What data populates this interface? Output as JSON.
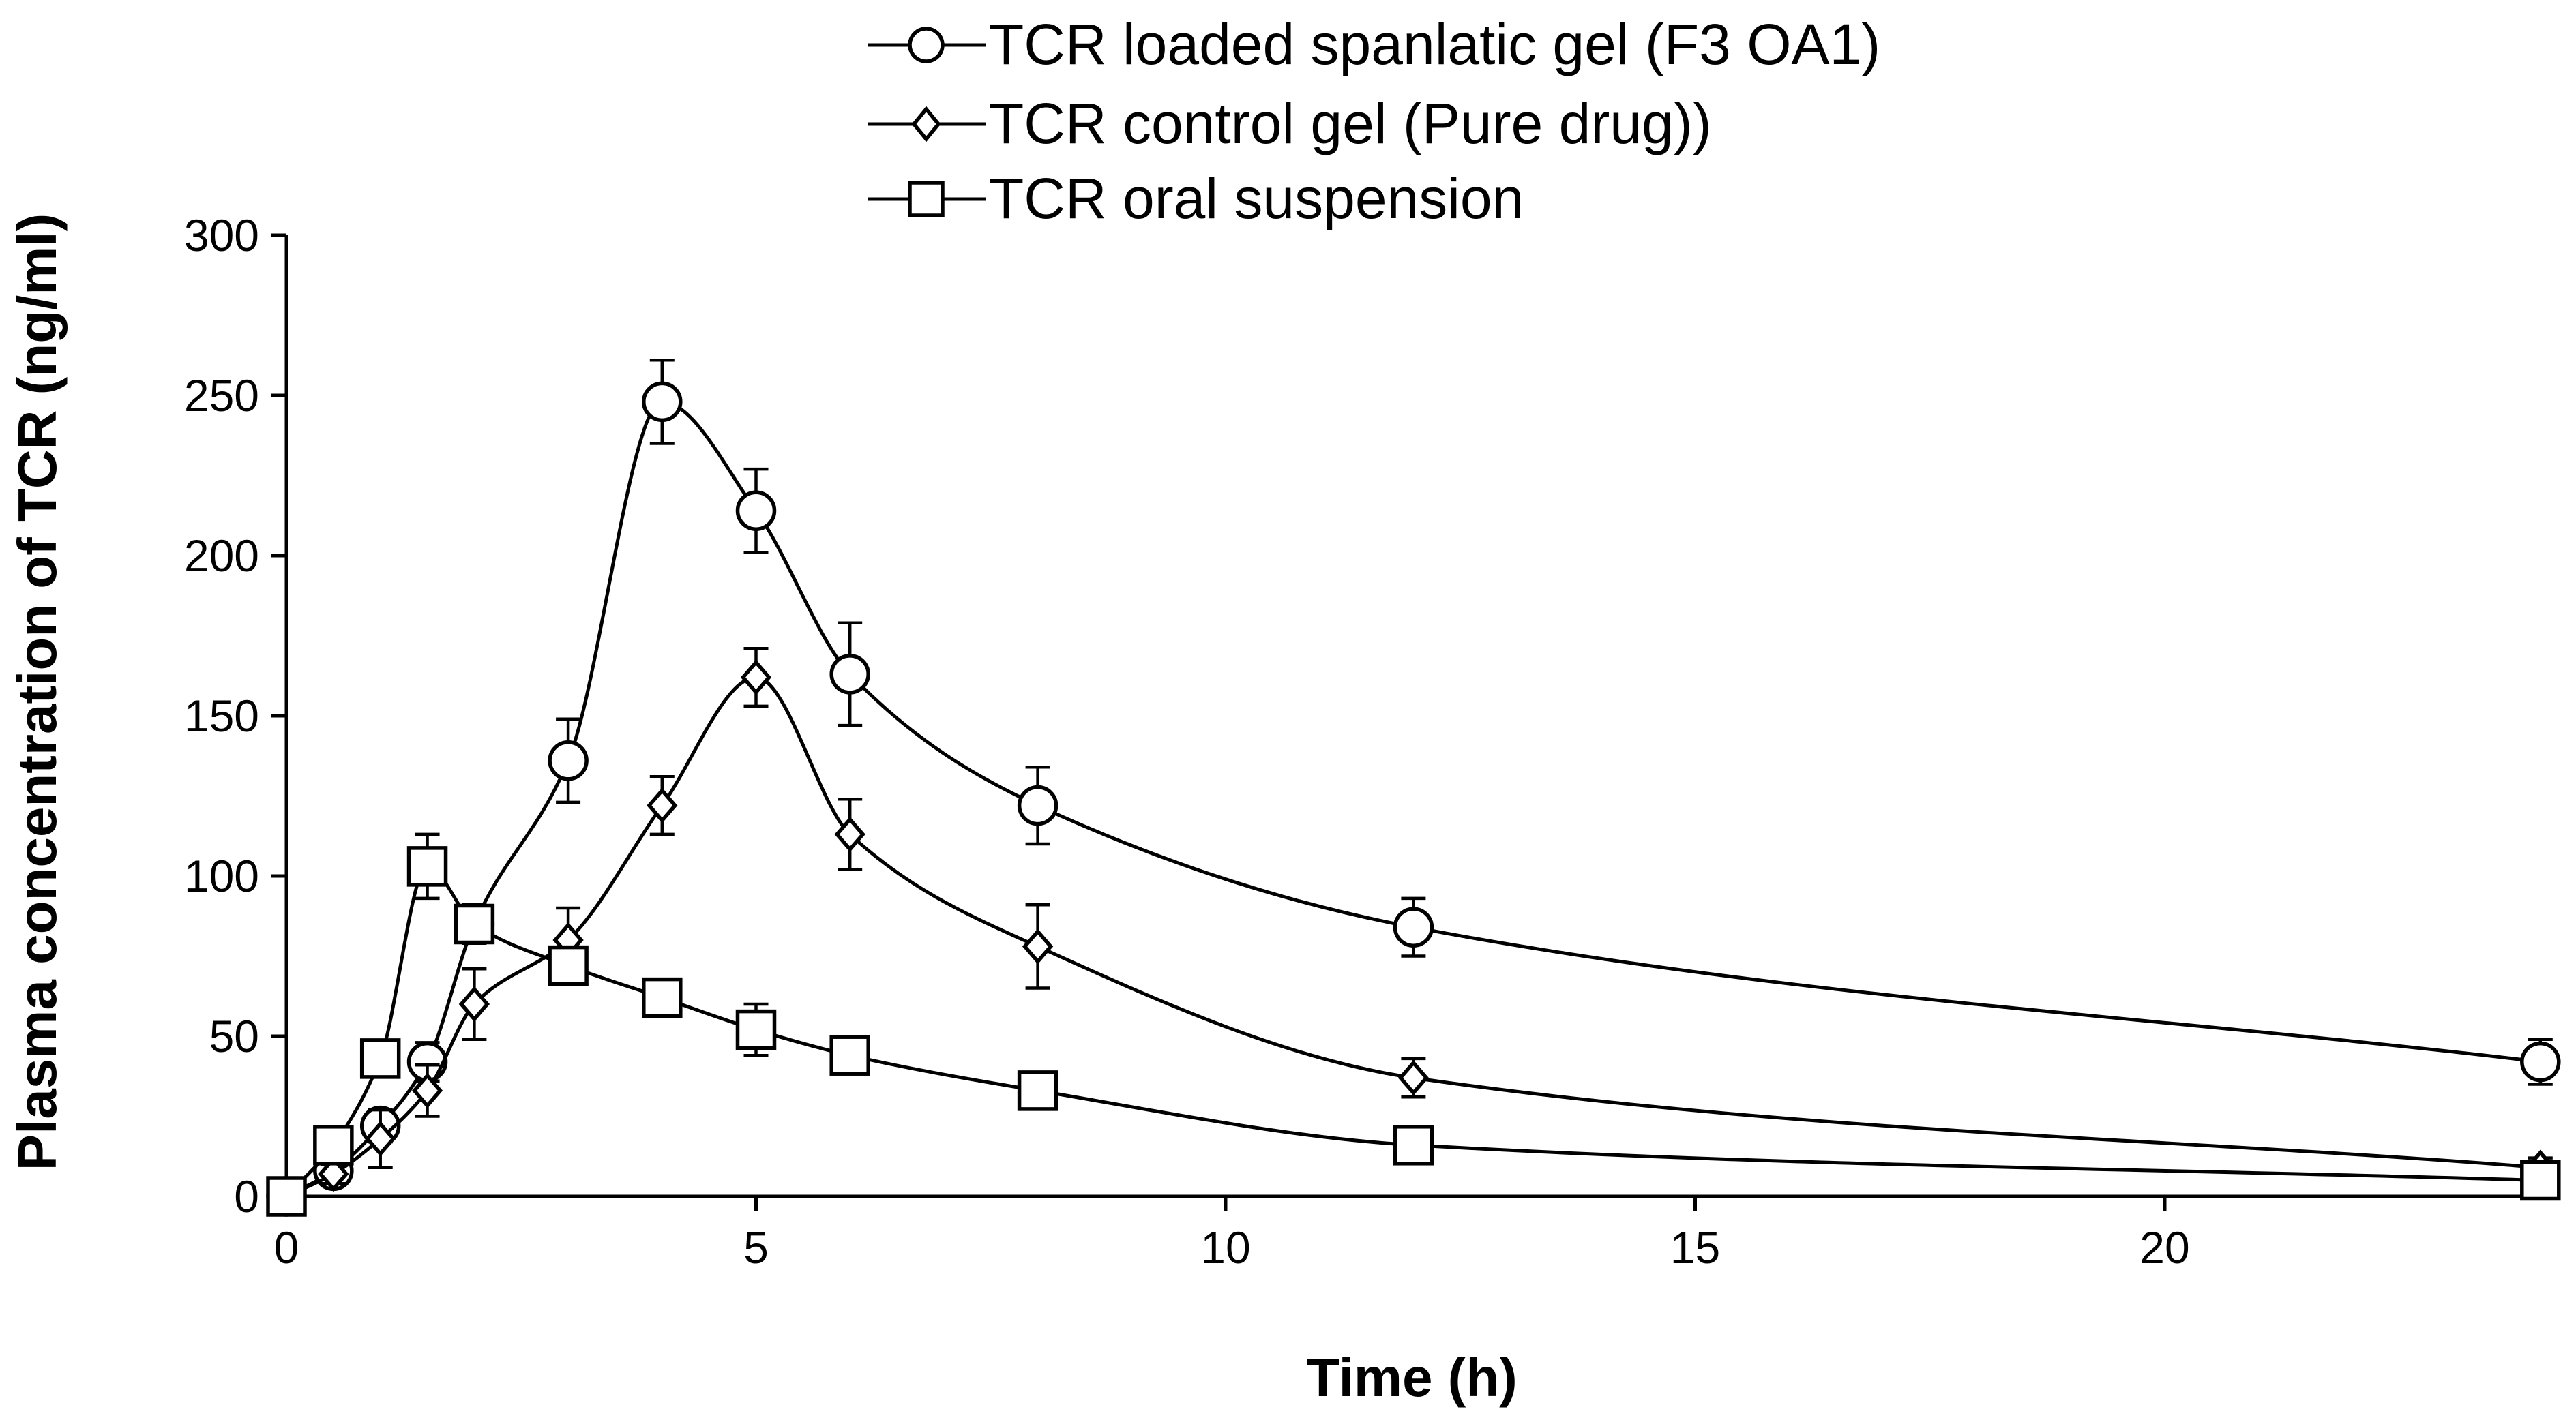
{
  "chart_data": {
    "type": "line",
    "title": "",
    "xlabel": "Time (h)",
    "ylabel": "Plasma concentration of TCR (ng/ml)",
    "xlim": [
      0,
      24
    ],
    "ylim": [
      0,
      300
    ],
    "x_ticks": [
      0,
      5,
      10,
      15,
      20
    ],
    "y_ticks": [
      0,
      50,
      100,
      150,
      200,
      250,
      300
    ],
    "grid": false,
    "legend_position": "top-center",
    "series": [
      {
        "name": "TCR loaded spanlatic gel (F3 OA1)",
        "marker": "circle",
        "x": [
          0,
          0.5,
          1,
          1.5,
          2,
          3,
          4,
          5,
          6,
          8,
          12,
          24
        ],
        "values": [
          0,
          8,
          22,
          42,
          85,
          136,
          248,
          214,
          163,
          122,
          84,
          42
        ],
        "error": [
          0,
          3,
          5,
          6,
          6,
          13,
          13,
          13,
          16,
          12,
          9,
          7
        ]
      },
      {
        "name": "TCR control  gel (Pure drug))",
        "marker": "diamond",
        "x": [
          0,
          0.5,
          1,
          1.5,
          2,
          3,
          4,
          5,
          6,
          8,
          12,
          24
        ],
        "values": [
          0,
          7,
          18,
          33,
          60,
          80,
          122,
          162,
          113,
          78,
          37,
          9
        ],
        "error": [
          0,
          3,
          9,
          8,
          11,
          10,
          9,
          9,
          11,
          13,
          6,
          3
        ]
      },
      {
        "name": "TCR oral suspension",
        "marker": "square",
        "x": [
          0,
          0.5,
          1,
          1.5,
          2,
          3,
          4,
          5,
          6,
          8,
          12,
          24
        ],
        "values": [
          0,
          16,
          43,
          103,
          85,
          72,
          62,
          52,
          44,
          33,
          16,
          5
        ],
        "error": [
          0,
          2,
          4,
          10,
          5,
          4,
          4,
          8,
          4,
          3,
          3,
          2
        ]
      }
    ]
  }
}
